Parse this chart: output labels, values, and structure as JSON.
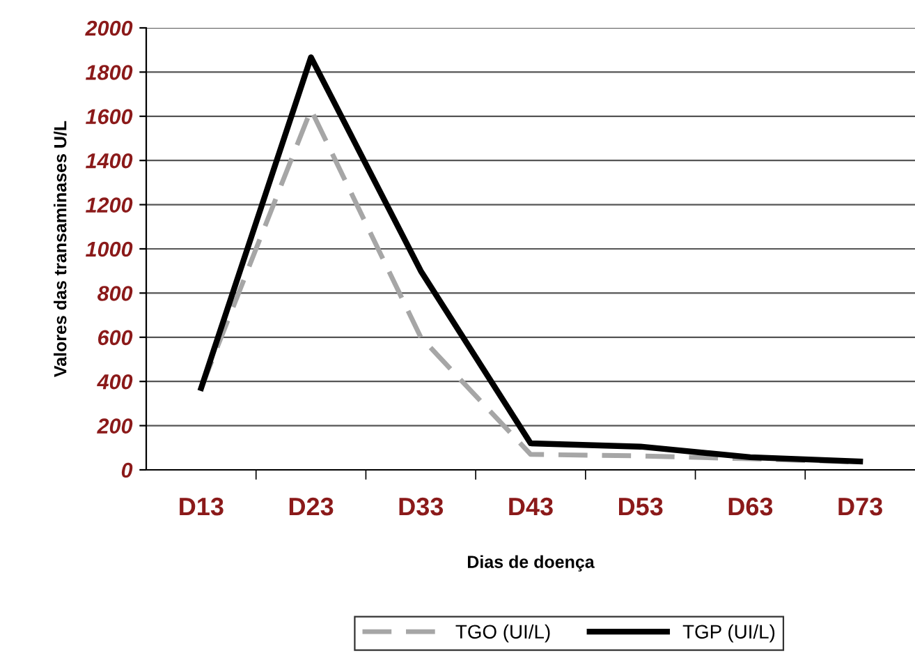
{
  "chart_data": {
    "type": "line",
    "xlabel": "Dias de doença",
    "ylabel": "Valores das transaminases U/L",
    "categories": [
      "D13",
      "D23",
      "D33",
      "D43",
      "D53",
      "D63",
      "D73"
    ],
    "series": [
      {
        "name": "TGO (UI/L)",
        "color": "#a6a6a6",
        "line_style": "dashed",
        "values": [
          370,
          1630,
          600,
          70,
          63,
          50,
          35
        ]
      },
      {
        "name": "TGP (UI/L)",
        "color": "#000000",
        "line_style": "solid",
        "values": [
          370,
          1867,
          900,
          120,
          105,
          57,
          38
        ]
      }
    ],
    "ylim": [
      0,
      2000
    ],
    "yticks": [
      0,
      200,
      400,
      600,
      800,
      1000,
      1200,
      1400,
      1600,
      1800,
      2000
    ],
    "grid": "y",
    "legend": "bottom",
    "marker": "none"
  }
}
